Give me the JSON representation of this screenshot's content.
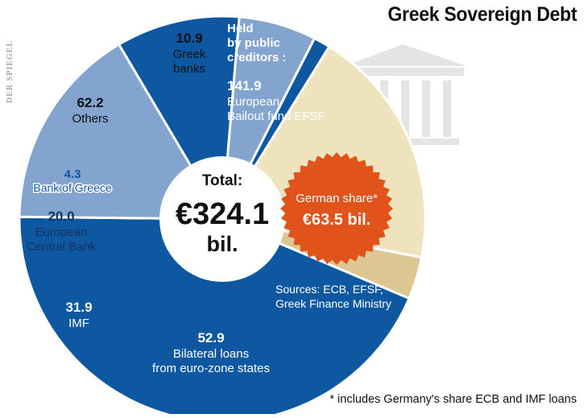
{
  "brand": "DER SPIEGEL",
  "footnote": "* includes Germany's share ECB and IMF loans",
  "center": {
    "label": "Total:",
    "value": "€324.1",
    "unit": "bil."
  },
  "callout": {
    "label": "German share*",
    "value": "€63.5 bil.",
    "color": "#e0531b"
  },
  "group_label": [
    "Held",
    "by public",
    "creditors :"
  ],
  "sources": [
    "Sources: ECB, EFSF,",
    "Greek Finance Ministry"
  ],
  "chart_data": {
    "type": "pie",
    "title": "Greek Sovereign Debt",
    "unit": "bil. €",
    "total": 324.1,
    "slices": [
      {
        "value": 141.9,
        "label_value": "141.9",
        "label": [
          "European",
          "Bailout fund EFSF"
        ],
        "color": "#0d58a1",
        "text_color": "#ffffff"
      },
      {
        "value": 52.9,
        "label_value": "52.9",
        "label": [
          "Bilateral loans",
          "from euro-zone states"
        ],
        "color": "#83a4cf",
        "text_color": "#ffffff"
      },
      {
        "value": 31.9,
        "label_value": "31.9",
        "label": [
          "IMF"
        ],
        "color": "#0d58a1",
        "text_color": "#ffffff"
      },
      {
        "value": 20.0,
        "label_value": "20.0",
        "label": [
          "European",
          "Central Bank"
        ],
        "color": "#83a4cf",
        "text_color": "#15345e"
      },
      {
        "value": 4.3,
        "label_value": "4.3",
        "label": [
          "Bank of Greece"
        ],
        "color": "#0d58a1",
        "text_color": "#0d58a1"
      },
      {
        "value": 62.2,
        "label_value": "62.2",
        "label": [
          "Others"
        ],
        "color": "#efe3be",
        "text_color": "#111111"
      },
      {
        "value": 10.9,
        "label_value": "10.9",
        "label": [
          "Greek",
          "banks"
        ],
        "color": "#dcc792",
        "text_color": "#111111"
      }
    ]
  }
}
